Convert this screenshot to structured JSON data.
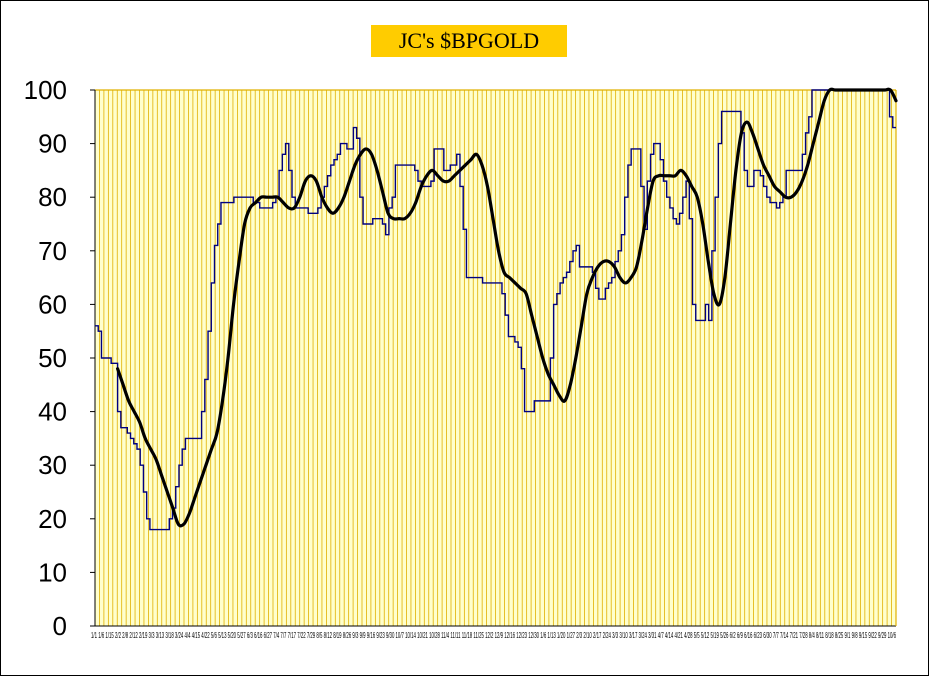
{
  "chart_data": {
    "type": "line",
    "title": "JC's $BPGOLD",
    "xlabel": "",
    "ylabel": "",
    "ylim": [
      0,
      100
    ],
    "y_ticks": [
      0,
      10,
      20,
      30,
      40,
      50,
      60,
      70,
      80,
      90,
      100
    ],
    "x_tick_text": "1/1 1/6 1/15 2/2 2/8 2/12 2/19 3/3 3/13 3/18 3/24 4/4 4/15 4/22 5/6 5/13 5/20 5/27 6/3 6/16 6/27 7/4 7/7 7/17 7/22 7/29 8/5 8/12 8/19 8/26 9/3 9/9 9/16 9/23 9/30 10/7 10/14 10/21 10/28 11/4 11/11 11/18 11/25 12/2 12/9 12/16 12/23 12/30 1/6 1/13 1/20 1/27 2/3 2/10 2/17 2/24 3/3 3/10 3/17 3/24 3/31 4/7 4/14 4/21 4/28 5/5 5/12 5/19 5/26 6/2 6/9 6/16 6/23 6/30 7/7 7/14 7/21 7/28 8/4 8/11 8/18 8/25 9/1 9/8 9/15 9/22 9/29 10/6",
    "grid": true,
    "plot_background": "#ffffcc",
    "grid_color": "#e0b000",
    "series": [
      {
        "color": "#000080",
        "style": "step",
        "values": [
          56,
          55,
          50,
          50,
          50,
          49,
          49,
          40,
          37,
          37,
          36,
          35,
          34,
          33,
          30,
          25,
          20,
          18,
          18,
          18,
          18,
          18,
          18,
          20,
          22,
          26,
          30,
          33,
          35,
          35,
          35,
          35,
          35,
          40,
          46,
          55,
          64,
          71,
          75,
          79,
          79,
          79,
          79,
          80,
          80,
          80,
          80,
          80,
          80,
          79,
          79,
          78,
          78,
          78,
          78,
          79,
          80,
          85,
          88,
          90,
          85,
          80,
          78,
          78,
          78,
          78,
          77,
          77,
          77,
          78,
          80,
          82,
          84,
          86,
          87,
          88,
          90,
          90,
          89,
          89,
          93,
          91,
          80,
          75,
          75,
          75,
          76,
          76,
          76,
          75,
          73,
          78,
          80,
          86,
          86,
          86,
          86,
          86,
          86,
          85,
          83,
          82,
          82,
          82,
          83,
          89,
          89,
          89,
          85,
          85,
          86,
          86,
          88,
          82,
          74,
          65,
          65,
          65,
          65,
          65,
          64,
          64,
          64,
          64,
          64,
          64,
          62,
          58,
          54,
          54,
          53,
          52,
          48,
          40,
          40,
          40,
          42,
          42,
          42,
          42,
          42,
          50,
          60,
          62,
          64,
          65,
          66,
          68,
          70,
          71,
          67,
          67,
          67,
          67,
          66,
          63,
          61,
          61,
          63,
          64,
          65,
          68,
          70,
          73,
          80,
          86,
          89,
          89,
          89,
          82,
          74,
          83,
          88,
          90,
          90,
          87,
          83,
          80,
          78,
          76,
          75,
          77,
          80,
          83,
          76,
          60,
          57,
          57,
          57,
          60,
          57,
          70,
          80,
          90,
          96,
          96,
          96,
          96,
          96,
          96,
          92,
          85,
          82,
          82,
          85,
          85,
          84,
          82,
          80,
          79,
          79,
          78,
          79,
          80,
          85,
          85,
          85,
          85,
          85,
          88,
          92,
          95,
          100,
          100,
          100,
          100,
          100,
          100,
          100,
          100,
          100,
          100,
          100,
          100,
          100,
          100,
          100,
          100,
          100,
          100,
          100,
          100,
          100,
          100,
          100,
          100,
          95,
          93,
          93
        ]
      },
      {
        "color": "#000000",
        "style": "smooth",
        "start_index": 7,
        "values": [
          48,
          45,
          42,
          40,
          38,
          35,
          33,
          31,
          28,
          25,
          22,
          19,
          19,
          21,
          24,
          27,
          30,
          33,
          36,
          42,
          50,
          60,
          68,
          75,
          78,
          79,
          80,
          80,
          80,
          80,
          79,
          78,
          78,
          80,
          83,
          84,
          83,
          80,
          78,
          77,
          78,
          80,
          83,
          86,
          88,
          89,
          88,
          85,
          81,
          77,
          76,
          76,
          76,
          77,
          79,
          82,
          84,
          85,
          84,
          83,
          83,
          84,
          85,
          86,
          87,
          88,
          86,
          82,
          76,
          70,
          66,
          65,
          64,
          63,
          62,
          58,
          54,
          50,
          47,
          45,
          43,
          42,
          45,
          50,
          56,
          62,
          65,
          67,
          68,
          68,
          67,
          65,
          64,
          65,
          67,
          72,
          78,
          83,
          84,
          84,
          84,
          84,
          85,
          84,
          82,
          80,
          75,
          68,
          62,
          60,
          65,
          75,
          85,
          92,
          94,
          92,
          89,
          86,
          84,
          82,
          81,
          80,
          80,
          81,
          83,
          86,
          90,
          94,
          98,
          100,
          100,
          100,
          100,
          100,
          100,
          100,
          100,
          100,
          100,
          100,
          100,
          98
        ]
      }
    ]
  }
}
